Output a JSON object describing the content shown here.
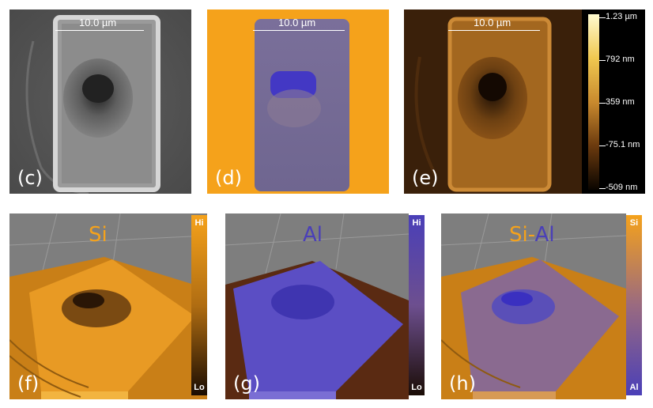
{
  "top_row": {
    "panel_c": {
      "label": "(c)",
      "scale_text": "10.0 µm"
    },
    "panel_d": {
      "label": "(d)",
      "scale_text": "10.0 µm"
    },
    "panel_e": {
      "label": "(e)",
      "scale_text": "10.0 µm"
    },
    "height_colorbar": {
      "ticks": [
        "1.23 µm",
        "792 nm",
        "359 nm",
        "-75.1 nm",
        "-509 nm"
      ]
    }
  },
  "bottom_row": {
    "panel_f": {
      "label": "(f)",
      "title": "Si",
      "cbar_top": "Hi",
      "cbar_bottom": "Lo"
    },
    "panel_g": {
      "label": "(g)",
      "title": "Al",
      "cbar_top": "Hi",
      "cbar_bottom": "Lo"
    },
    "panel_h": {
      "label": "(h)",
      "title_si": "Si",
      "title_dash": "-",
      "title_al": "Al",
      "cbar_top": "Si",
      "cbar_bottom": "Al"
    }
  },
  "colors": {
    "si_orange": "#f5a21b",
    "al_blue": "#4a3fb8",
    "sem_gray": "#5a5a5a"
  }
}
